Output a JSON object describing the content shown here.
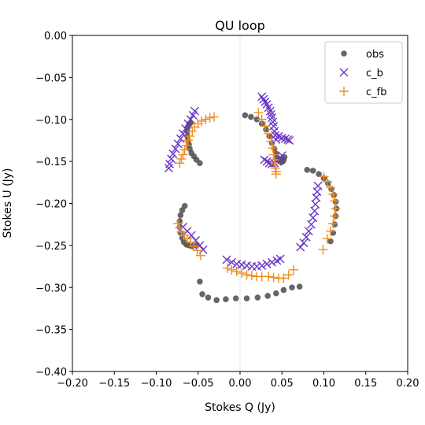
{
  "chart_data": {
    "type": "scatter",
    "title": "QU loop",
    "xlabel": "Stokes Q (Jy)",
    "ylabel": "Stokes U (Jy)",
    "xlim": [
      -0.2,
      0.2
    ],
    "ylim": [
      -0.4,
      0.0
    ],
    "xticks": [
      -0.2,
      -0.15,
      -0.1,
      -0.05,
      0.0,
      0.05,
      0.1,
      0.15,
      0.2
    ],
    "xtick_labels": [
      "−0.20",
      "−0.15",
      "−0.10",
      "−0.05",
      "0.00",
      "0.05",
      "0.10",
      "0.15",
      "0.20"
    ],
    "yticks": [
      0.0,
      -0.05,
      -0.1,
      -0.15,
      -0.2,
      -0.25,
      -0.3,
      -0.35,
      -0.4
    ],
    "ytick_labels": [
      "0.00",
      "−0.05",
      "−0.10",
      "−0.15",
      "−0.20",
      "−0.25",
      "−0.30",
      "−0.35",
      "−0.40"
    ],
    "grid": false,
    "reference_line": {
      "x": 0.0,
      "color": "#e6e6e6"
    },
    "legend_position": "top-right",
    "series": [
      {
        "name": "obs",
        "marker": "circle",
        "color": "#555555",
        "x": [
          -0.048,
          -0.052,
          -0.055,
          -0.058,
          -0.06,
          -0.061,
          -0.062,
          -0.063,
          -0.063,
          -0.062,
          -0.061,
          -0.059,
          -0.066,
          -0.069,
          -0.071,
          -0.072,
          -0.072,
          -0.071,
          -0.069,
          -0.067,
          -0.064,
          -0.061,
          -0.057,
          -0.052,
          -0.048,
          -0.045,
          -0.038,
          -0.028,
          -0.017,
          -0.005,
          0.008,
          0.021,
          0.033,
          0.043,
          0.052,
          0.062,
          0.071,
          0.08,
          0.087,
          0.094,
          0.1,
          0.105,
          0.109,
          0.112,
          0.114,
          0.115,
          0.114,
          0.113,
          0.111,
          0.108,
          0.006,
          0.013,
          0.02,
          0.026,
          0.031,
          0.035,
          0.038,
          0.041,
          0.043,
          0.045,
          0.047,
          0.049,
          0.051,
          0.052,
          0.053
        ],
        "y": [
          -0.152,
          -0.148,
          -0.144,
          -0.14,
          -0.135,
          -0.13,
          -0.125,
          -0.12,
          -0.114,
          -0.109,
          -0.106,
          -0.104,
          -0.203,
          -0.208,
          -0.214,
          -0.221,
          -0.228,
          -0.235,
          -0.241,
          -0.246,
          -0.249,
          -0.25,
          -0.251,
          -0.25,
          -0.293,
          -0.308,
          -0.312,
          -0.315,
          -0.314,
          -0.313,
          -0.313,
          -0.312,
          -0.31,
          -0.307,
          -0.303,
          -0.3,
          -0.299,
          -0.16,
          -0.161,
          -0.165,
          -0.17,
          -0.176,
          -0.183,
          -0.19,
          -0.198,
          -0.206,
          -0.215,
          -0.225,
          -0.235,
          -0.245,
          -0.095,
          -0.097,
          -0.1,
          -0.105,
          -0.112,
          -0.12,
          -0.128,
          -0.135,
          -0.141,
          -0.146,
          -0.149,
          -0.151,
          -0.15,
          -0.148,
          -0.145
        ]
      },
      {
        "name": "c_b",
        "marker": "x",
        "color": "#6a35c8",
        "x": [
          -0.085,
          -0.084,
          -0.082,
          -0.08,
          -0.077,
          -0.074,
          -0.071,
          -0.068,
          -0.065,
          -0.062,
          -0.059,
          -0.056,
          -0.054,
          0.026,
          0.028,
          0.03,
          0.032,
          0.034,
          0.036,
          0.037,
          0.038,
          0.039,
          0.04,
          0.041,
          0.042,
          0.043,
          0.046,
          0.05,
          0.054,
          0.057,
          0.059,
          0.029,
          0.032,
          0.035,
          0.038,
          0.041,
          0.044,
          0.047,
          0.05,
          0.072,
          0.076,
          0.079,
          0.082,
          0.085,
          0.087,
          0.089,
          0.09,
          0.091,
          0.092,
          0.093,
          -0.016,
          -0.01,
          -0.004,
          0.002,
          0.008,
          0.014,
          0.02,
          0.026,
          0.032,
          0.038,
          0.044,
          0.048,
          -0.068,
          -0.063,
          -0.058,
          -0.053,
          -0.048,
          -0.044
        ],
        "y": [
          -0.158,
          -0.153,
          -0.147,
          -0.141,
          -0.135,
          -0.129,
          -0.123,
          -0.117,
          -0.111,
          -0.105,
          -0.1,
          -0.095,
          -0.09,
          -0.073,
          -0.076,
          -0.079,
          -0.082,
          -0.086,
          -0.09,
          -0.094,
          -0.098,
          -0.103,
          -0.108,
          -0.114,
          -0.119,
          -0.124,
          -0.12,
          -0.122,
          -0.123,
          -0.124,
          -0.125,
          -0.148,
          -0.15,
          -0.152,
          -0.153,
          -0.152,
          -0.15,
          -0.147,
          -0.143,
          -0.252,
          -0.247,
          -0.24,
          -0.233,
          -0.225,
          -0.217,
          -0.209,
          -0.201,
          -0.193,
          -0.186,
          -0.179,
          -0.267,
          -0.27,
          -0.272,
          -0.273,
          -0.274,
          -0.275,
          -0.275,
          -0.274,
          -0.272,
          -0.27,
          -0.268,
          -0.266,
          -0.228,
          -0.233,
          -0.238,
          -0.244,
          -0.25,
          -0.255
        ]
      },
      {
        "name": "c_fb",
        "marker": "+",
        "color": "#f28e1c",
        "x": [
          -0.072,
          -0.07,
          -0.068,
          -0.066,
          -0.064,
          -0.062,
          -0.06,
          -0.057,
          -0.054,
          -0.05,
          -0.046,
          -0.041,
          -0.036,
          -0.031,
          0.022,
          0.026,
          0.03,
          0.034,
          0.037,
          0.039,
          0.04,
          0.041,
          0.042,
          0.042,
          0.043,
          0.043,
          0.1,
          0.104,
          0.108,
          0.111,
          0.113,
          0.114,
          0.113,
          0.111,
          0.108,
          0.104,
          0.099,
          -0.074,
          -0.072,
          -0.07,
          -0.067,
          -0.063,
          -0.059,
          -0.055,
          -0.051,
          -0.047,
          -0.015,
          -0.01,
          -0.004,
          0.002,
          0.008,
          0.014,
          0.02,
          0.026,
          0.034,
          0.04,
          0.046,
          0.052,
          0.058,
          0.064
        ],
        "y": [
          -0.152,
          -0.147,
          -0.142,
          -0.136,
          -0.131,
          -0.125,
          -0.12,
          -0.114,
          -0.109,
          -0.105,
          -0.102,
          -0.1,
          -0.098,
          -0.097,
          -0.092,
          -0.1,
          -0.108,
          -0.117,
          -0.126,
          -0.134,
          -0.142,
          -0.148,
          -0.153,
          -0.158,
          -0.162,
          -0.165,
          -0.168,
          -0.174,
          -0.181,
          -0.189,
          -0.197,
          -0.206,
          -0.215,
          -0.224,
          -0.233,
          -0.242,
          -0.255,
          -0.224,
          -0.229,
          -0.234,
          -0.238,
          -0.242,
          -0.246,
          -0.251,
          -0.256,
          -0.262,
          -0.277,
          -0.279,
          -0.281,
          -0.283,
          -0.285,
          -0.286,
          -0.287,
          -0.287,
          -0.287,
          -0.288,
          -0.289,
          -0.289,
          -0.285,
          -0.279
        ]
      }
    ]
  }
}
